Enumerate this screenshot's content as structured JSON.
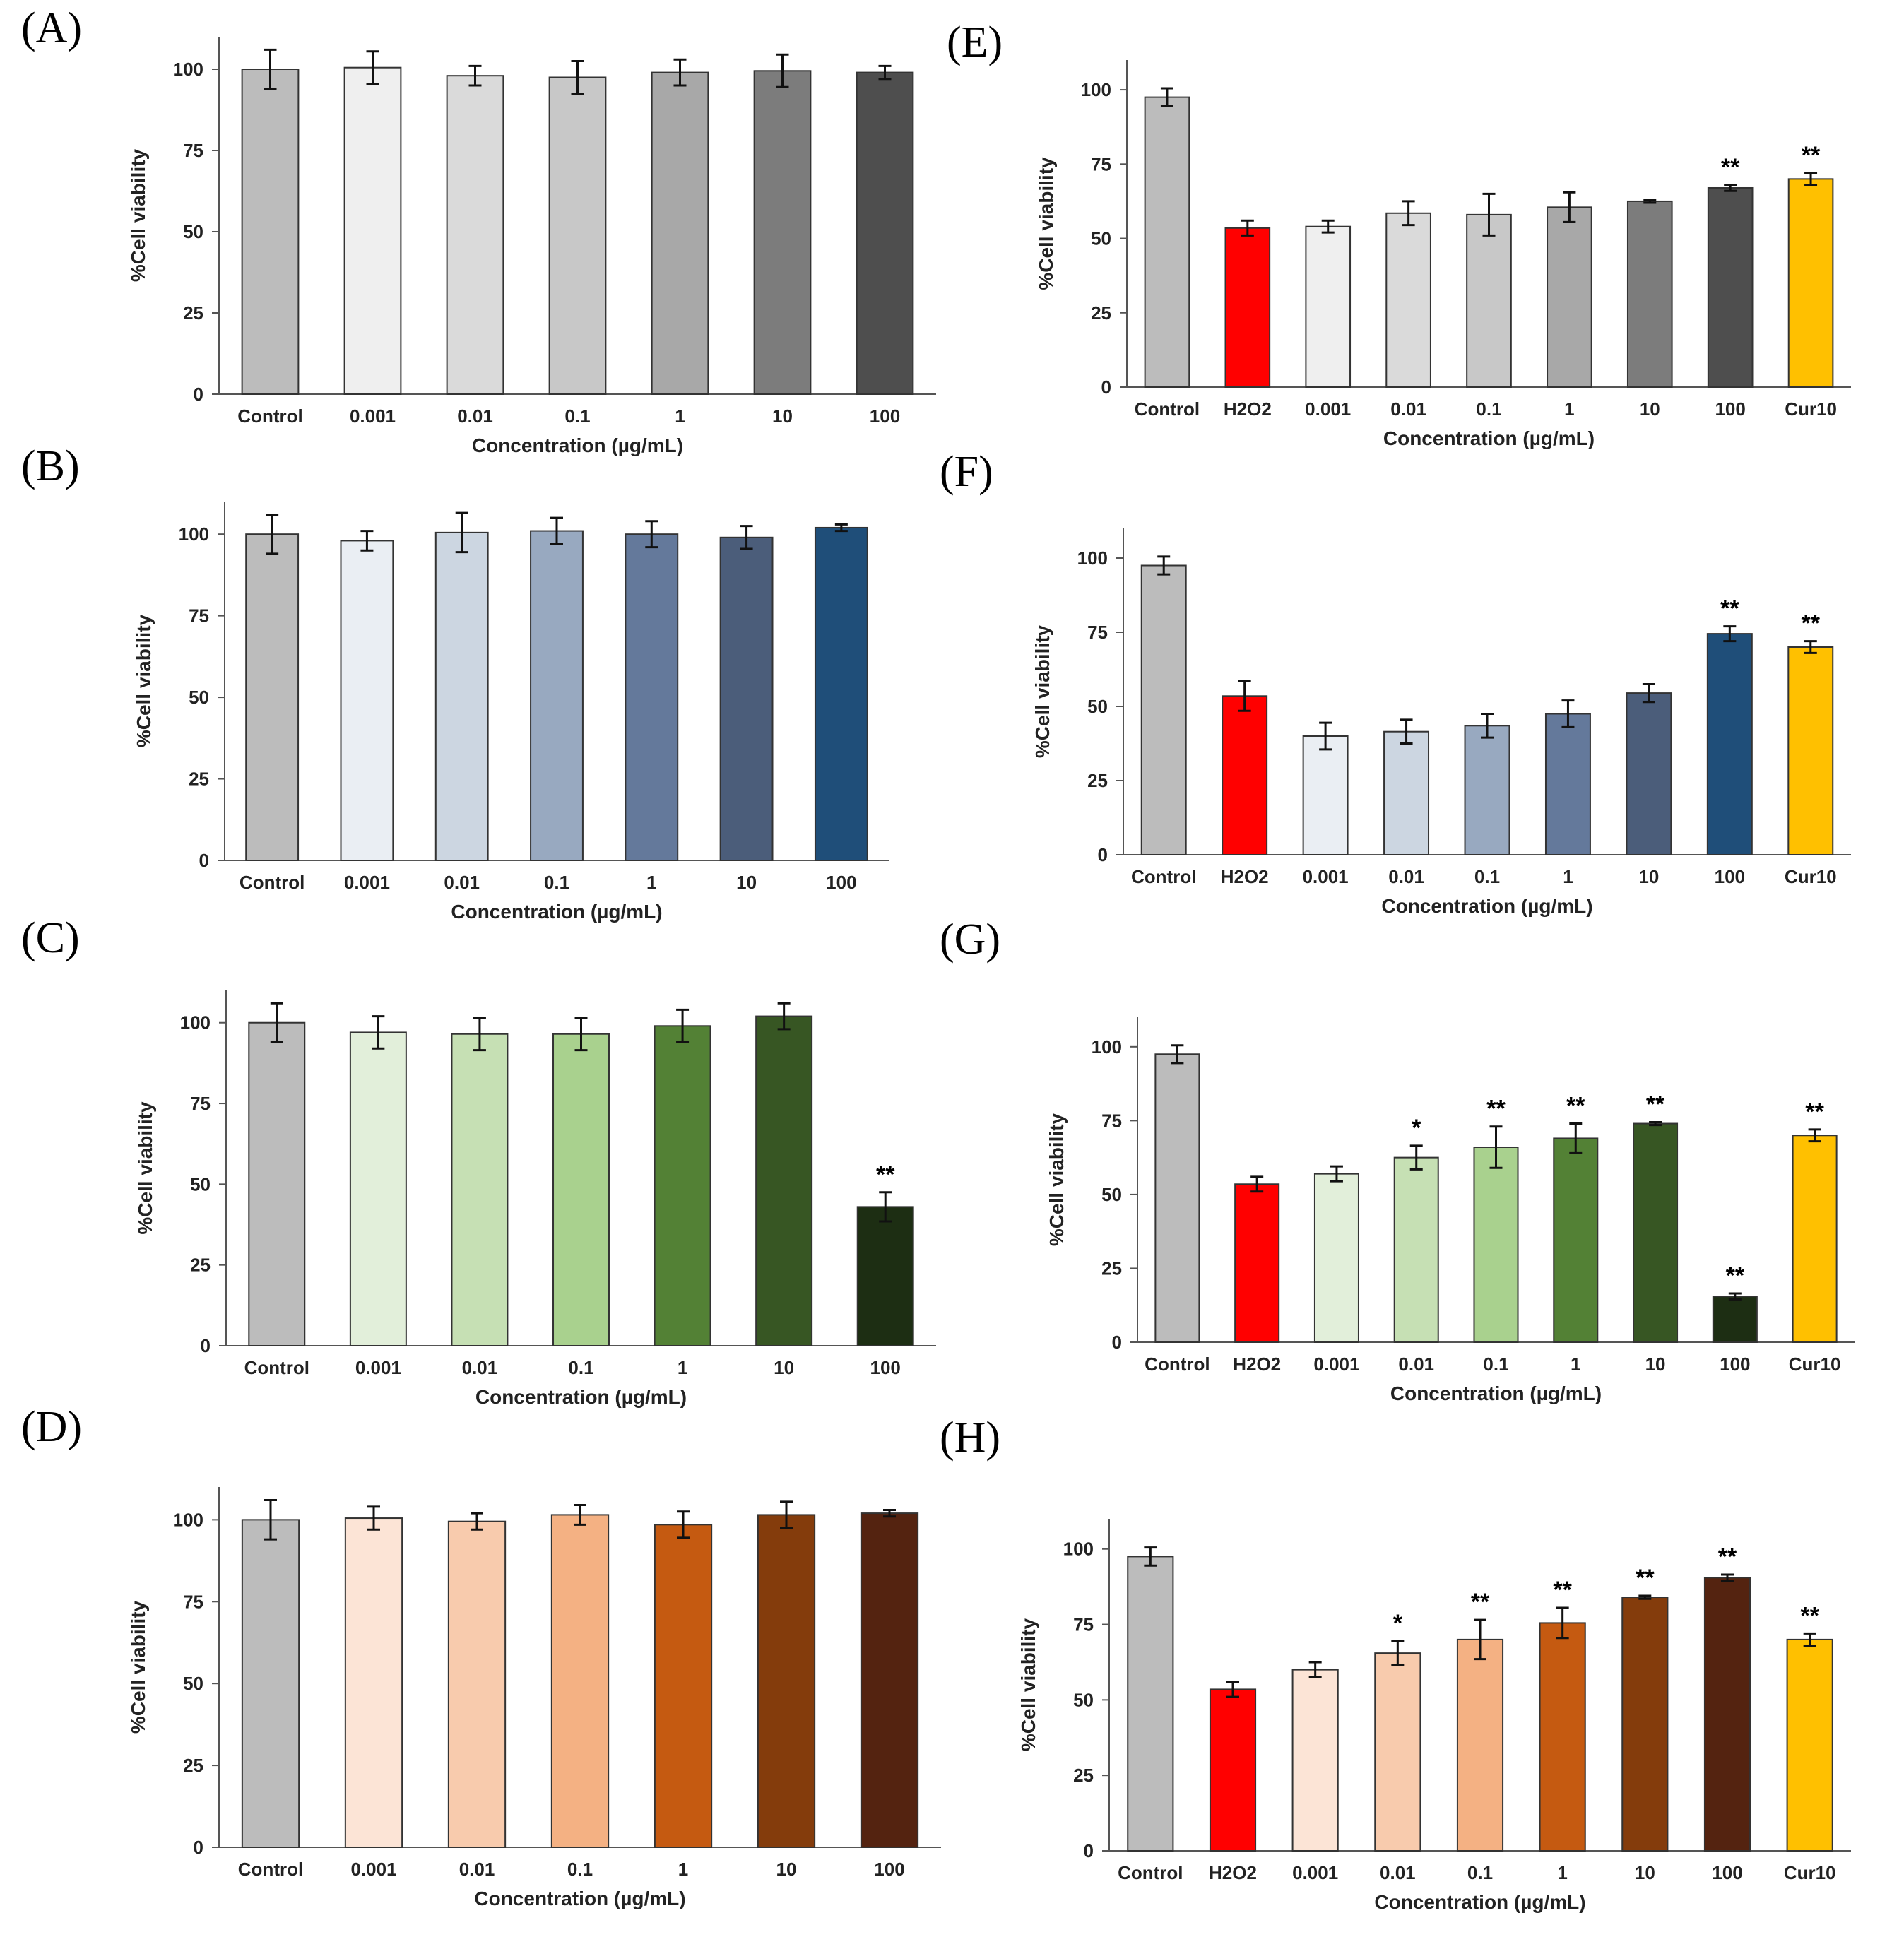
{
  "figure_description_label": "Cell viability bar charts (A)–(H)",
  "chart_data": [
    {
      "panel": "(A)",
      "type": "bar",
      "categories": [
        "Control",
        "0.001",
        "0.01",
        "0.1",
        "1",
        "10",
        "100"
      ],
      "values": [
        100,
        100.5,
        98,
        97.5,
        99,
        99.5,
        99
      ],
      "errors": [
        6,
        5,
        3,
        5,
        4,
        5,
        2
      ],
      "colors": [
        "#bcbcbc",
        "#efefef",
        "#dadada",
        "#c8c8c8",
        "#a8a8a8",
        "#7c7c7c",
        "#4e4e4e"
      ],
      "significance": [
        "",
        "",
        "",
        "",
        "",
        "",
        ""
      ],
      "xlabel": "Concentration (µg/mL)",
      "ylabel": "%Cell viability",
      "ylim": [
        0,
        110
      ],
      "yticks": [
        0,
        25,
        50,
        75,
        100
      ]
    },
    {
      "panel": "(B)",
      "type": "bar",
      "categories": [
        "Control",
        "0.001",
        "0.01",
        "0.1",
        "1",
        "10",
        "100"
      ],
      "values": [
        100,
        98,
        100.5,
        101,
        100,
        99,
        102
      ],
      "errors": [
        6,
        3,
        6,
        4,
        4,
        3.5,
        1
      ],
      "colors": [
        "#bcbcbc",
        "#eaeef3",
        "#ccd6e1",
        "#98a9c0",
        "#64799b",
        "#4b5d7a",
        "#1f4e79"
      ],
      "significance": [
        "",
        "",
        "",
        "",
        "",
        "",
        ""
      ],
      "xlabel": "Concentration (µg/mL)",
      "ylabel": "%Cell viability",
      "ylim": [
        0,
        110
      ],
      "yticks": [
        0,
        25,
        50,
        75,
        100
      ]
    },
    {
      "panel": "(C)",
      "type": "bar",
      "categories": [
        "Control",
        "0.001",
        "0.01",
        "0.1",
        "1",
        "10",
        "100"
      ],
      "values": [
        100,
        97,
        96.5,
        96.5,
        99,
        102,
        43
      ],
      "errors": [
        6,
        5,
        5,
        5,
        5,
        4,
        4.5
      ],
      "colors": [
        "#bcbcbc",
        "#e2efda",
        "#c6e0b4",
        "#a9d18e",
        "#538135",
        "#375623",
        "#1d2e13"
      ],
      "significance": [
        "",
        "",
        "",
        "",
        "",
        "",
        "**"
      ],
      "xlabel": "Concentration (µg/mL)",
      "ylabel": "%Cell viability",
      "ylim": [
        0,
        110
      ],
      "yticks": [
        0,
        25,
        50,
        75,
        100
      ]
    },
    {
      "panel": "(D)",
      "type": "bar",
      "categories": [
        "Control",
        "0.001",
        "0.01",
        "0.1",
        "1",
        "10",
        "100"
      ],
      "values": [
        100,
        100.5,
        99.5,
        101.5,
        98.5,
        101.5,
        102
      ],
      "errors": [
        6,
        3.5,
        2.5,
        3,
        4,
        4,
        1
      ],
      "colors": [
        "#bcbcbc",
        "#fce4d6",
        "#f8cbad",
        "#f4b183",
        "#c55a11",
        "#843c0c",
        "#542310"
      ],
      "significance": [
        "",
        "",
        "",
        "",
        "",
        "",
        ""
      ],
      "xlabel": "Concentration (µg/mL)",
      "ylabel": "%Cell viability",
      "ylim": [
        0,
        110
      ],
      "yticks": [
        0,
        25,
        50,
        75,
        100
      ]
    },
    {
      "panel": "(E)",
      "type": "bar",
      "categories": [
        "Control",
        "H2O2",
        "0.001",
        "0.01",
        "0.1",
        "1",
        "10",
        "100",
        "Cur10"
      ],
      "values": [
        97.5,
        53.5,
        54,
        58.5,
        58,
        60.5,
        62.5,
        67,
        70
      ],
      "errors": [
        3,
        2.5,
        2,
        4,
        7,
        5,
        0.5,
        1,
        2
      ],
      "colors": [
        "#bcbcbc",
        "#ff0000",
        "#efefef",
        "#dadada",
        "#c8c8c8",
        "#a8a8a8",
        "#7c7c7c",
        "#4e4e4e",
        "#ffc000"
      ],
      "significance": [
        "",
        "",
        "",
        "",
        "",
        "",
        "",
        "**",
        "**"
      ],
      "xlabel": "Concentration (µg/mL)",
      "ylabel": "%Cell viability",
      "ylim": [
        0,
        110
      ],
      "yticks": [
        0,
        25,
        50,
        75,
        100
      ]
    },
    {
      "panel": "(F)",
      "type": "bar",
      "categories": [
        "Control",
        "H2O2",
        "0.001",
        "0.01",
        "0.1",
        "1",
        "10",
        "100",
        "Cur10"
      ],
      "values": [
        97.5,
        53.5,
        40,
        41.5,
        43.5,
        47.5,
        54.5,
        74.5,
        70
      ],
      "errors": [
        3,
        5,
        4.5,
        4,
        4,
        4.5,
        3,
        2.5,
        2
      ],
      "colors": [
        "#bcbcbc",
        "#ff0000",
        "#eaeef3",
        "#ccd6e1",
        "#98a9c0",
        "#64799b",
        "#4b5d7a",
        "#1f4e79",
        "#ffc000"
      ],
      "significance": [
        "",
        "",
        "",
        "",
        "",
        "",
        "",
        "**",
        "**"
      ],
      "xlabel": "Concentration (µg/mL)",
      "ylabel": "%Cell viability",
      "ylim": [
        0,
        110
      ],
      "yticks": [
        0,
        25,
        50,
        75,
        100
      ]
    },
    {
      "panel": "(G)",
      "type": "bar",
      "categories": [
        "Control",
        "H2O2",
        "0.001",
        "0.01",
        "0.1",
        "1",
        "10",
        "100",
        "Cur10"
      ],
      "values": [
        97.5,
        53.5,
        57,
        62.5,
        66,
        69,
        74,
        15.5,
        70
      ],
      "errors": [
        3,
        2.5,
        2.5,
        4,
        7,
        5,
        0.5,
        1,
        2
      ],
      "colors": [
        "#bcbcbc",
        "#ff0000",
        "#e2efda",
        "#c6e0b4",
        "#a9d18e",
        "#538135",
        "#375623",
        "#1d2e13",
        "#ffc000"
      ],
      "significance": [
        "",
        "",
        "",
        "*",
        "**",
        "**",
        "**",
        "**",
        "**"
      ],
      "xlabel": "Concentration (µg/mL)",
      "ylabel": "%Cell viability",
      "ylim": [
        0,
        110
      ],
      "yticks": [
        0,
        25,
        50,
        75,
        100
      ]
    },
    {
      "panel": "(H)",
      "type": "bar",
      "categories": [
        "Control",
        "H2O2",
        "0.001",
        "0.01",
        "0.1",
        "1",
        "10",
        "100",
        "Cur10"
      ],
      "values": [
        97.5,
        53.5,
        60,
        65.5,
        70,
        75.5,
        84,
        90.5,
        70
      ],
      "errors": [
        3,
        2.5,
        2.5,
        4,
        6.5,
        5,
        0.5,
        1,
        2
      ],
      "colors": [
        "#bcbcbc",
        "#ff0000",
        "#fce4d6",
        "#f8cbad",
        "#f4b183",
        "#c55a11",
        "#843c0c",
        "#542310",
        "#ffc000"
      ],
      "significance": [
        "",
        "",
        "",
        "*",
        "**",
        "**",
        "**",
        "**",
        "**"
      ],
      "xlabel": "Concentration (µg/mL)",
      "ylabel": "%Cell viability",
      "ylim": [
        0,
        110
      ],
      "yticks": [
        0,
        25,
        50,
        75,
        100
      ]
    }
  ]
}
